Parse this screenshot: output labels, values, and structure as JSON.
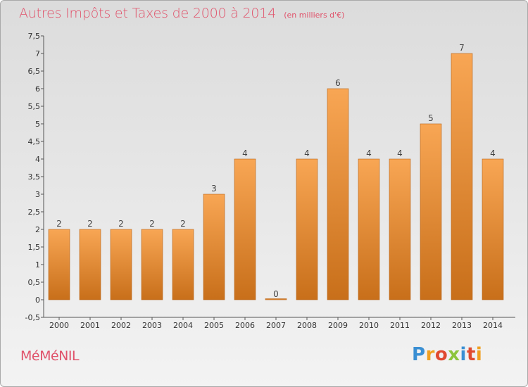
{
  "chart_data": {
    "type": "bar",
    "title": "Autres Impôts et Taxes de 2000 à 2014",
    "subtitle": "(en milliers d'€)",
    "categories": [
      "2000",
      "2001",
      "2002",
      "2003",
      "2004",
      "2005",
      "2006",
      "2007",
      "2008",
      "2009",
      "2010",
      "2011",
      "2012",
      "2013",
      "2014"
    ],
    "values": [
      2,
      2,
      2,
      2,
      2,
      3,
      4,
      0,
      4,
      6,
      4,
      4,
      5,
      7,
      4
    ],
    "data_labels": [
      "2",
      "2",
      "2",
      "2",
      "2",
      "3",
      "4",
      "0",
      "4",
      "6",
      "4",
      "4",
      "5",
      "7",
      "4"
    ],
    "y_ticks": [
      "-0,5",
      "0",
      "0,5",
      "1",
      "1,5",
      "2",
      "2,5",
      "3",
      "3,5",
      "4",
      "4,5",
      "5",
      "5,5",
      "6",
      "6,5",
      "7",
      "7,5"
    ],
    "ylim": [
      -0.5,
      7.5
    ],
    "grid": false,
    "bar_color_top": "#f8a654",
    "bar_color_bottom": "#c86f1a"
  },
  "footer": {
    "commune": "MéMéNIL",
    "logo": [
      "P",
      "r",
      "o",
      "x",
      "i",
      "t",
      "i"
    ]
  }
}
